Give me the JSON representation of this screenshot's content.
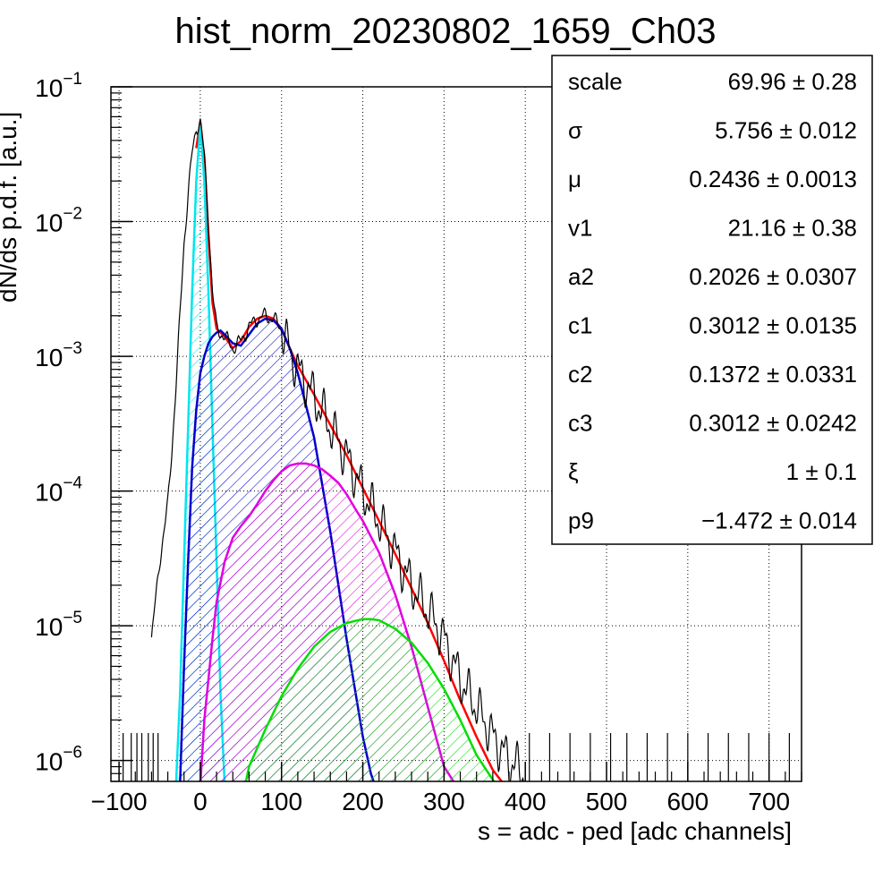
{
  "chart_data": {
    "type": "histogram",
    "title": "hist_norm_20230802_1659_Ch03",
    "xlabel": "s = adc - ped [adc channels]",
    "ylabel": "dN/ds p.d.f. [a.u.]",
    "xlim": [
      -110,
      740
    ],
    "ylim": [
      7e-07,
      0.1
    ],
    "yscale": "log",
    "grid": true,
    "x_ticks": [
      -100,
      0,
      100,
      200,
      300,
      400,
      500,
      600,
      700
    ],
    "x_tick_labels": [
      "−100",
      "0",
      "100",
      "200",
      "300",
      "400",
      "500",
      "600",
      "700"
    ],
    "y_ticks": [
      {
        "value": 1e-06,
        "base": "10",
        "exp": "−6"
      },
      {
        "value": 1e-05,
        "base": "10",
        "exp": "−5"
      },
      {
        "value": 0.0001,
        "base": "10",
        "exp": "−4"
      },
      {
        "value": 0.001,
        "base": "10",
        "exp": "−3"
      },
      {
        "value": 0.01,
        "base": "10",
        "exp": "−2"
      },
      {
        "value": 0.1,
        "base": "10",
        "exp": "−1"
      }
    ],
    "histogram": {
      "color": "#000000",
      "x": [
        -60,
        -50,
        -40,
        -35,
        -30,
        -25,
        -20,
        -15,
        -10,
        -5,
        0,
        5,
        10,
        15,
        20,
        30,
        40,
        50,
        60,
        70,
        80,
        90,
        100,
        110,
        120,
        140,
        160,
        180,
        200,
        220,
        240,
        260,
        280,
        300,
        320,
        340,
        360,
        380,
        400
      ],
      "y": [
        8e-06,
        3e-05,
        8e-05,
        0.0002,
        0.0006,
        0.002,
        0.007,
        0.016,
        0.032,
        0.05,
        0.055,
        0.03,
        0.01,
        0.003,
        0.0016,
        0.0014,
        0.00115,
        0.0013,
        0.00165,
        0.0019,
        0.002,
        0.0019,
        0.0016,
        0.0011,
        0.0008,
        0.0005,
        0.0003,
        0.00018,
        0.0001,
        6e-05,
        3.5e-05,
        2e-05,
        1.3e-05,
        8e-06,
        4e-06,
        2.5e-06,
        1.5e-06,
        1e-06,
        8e-07
      ],
      "sparse_bins_x": [
        -95,
        -85,
        -78,
        -72,
        -64,
        -58,
        -52,
        405,
        430,
        455,
        480,
        505,
        525,
        550,
        575,
        600,
        625,
        650,
        675,
        700,
        725
      ]
    },
    "series": [
      {
        "color": "#ff0000",
        "fill": "none",
        "x": [
          -5,
          0,
          5,
          10,
          15,
          20,
          30,
          40,
          50,
          60,
          70,
          80,
          90,
          100,
          110,
          120,
          140,
          160,
          180,
          200,
          220,
          240,
          260,
          280,
          300,
          320,
          340,
          360,
          375
        ],
        "y": [
          0.035,
          0.055,
          0.03,
          0.008,
          0.0025,
          0.0016,
          0.0014,
          0.00115,
          0.0013,
          0.00165,
          0.0019,
          0.002,
          0.0019,
          0.0016,
          0.00115,
          0.00085,
          0.00052,
          0.00031,
          0.000185,
          0.000105,
          6e-05,
          3.4e-05,
          1.9e-05,
          1.05e-05,
          5.5e-06,
          2.8e-06,
          1.5e-06,
          8.5e-07,
          6.5e-07
        ]
      },
      {
        "color": "#00e5ee",
        "fill": "#00e5ee",
        "x": [
          -30,
          -25,
          -20,
          -15,
          -10,
          -5,
          0,
          5,
          10,
          15,
          20,
          25,
          30
        ],
        "y": [
          6.5e-07,
          3e-06,
          3e-05,
          0.0003,
          0.003,
          0.02,
          0.052,
          0.02,
          0.003,
          0.0003,
          3e-05,
          3e-06,
          6.5e-07
        ]
      },
      {
        "color": "#0000cc",
        "fill": "#0000cc",
        "x": [
          -25,
          -20,
          -15,
          -10,
          -5,
          0,
          5,
          10,
          15,
          20,
          25,
          30,
          40,
          50,
          60,
          70,
          80,
          90,
          100,
          110,
          120,
          140,
          160,
          180,
          200,
          210,
          215
        ],
        "y": [
          6.5e-07,
          5e-06,
          3e-05,
          0.00015,
          0.0004,
          0.00075,
          0.001,
          0.00125,
          0.0014,
          0.0015,
          0.00155,
          0.00145,
          0.00125,
          0.0012,
          0.00145,
          0.00175,
          0.0019,
          0.00185,
          0.0016,
          0.00115,
          0.00075,
          0.00025,
          5e-05,
          8e-06,
          1.5e-06,
          8e-07,
          6.5e-07
        ]
      },
      {
        "color": "#e000e0",
        "fill": "#e000e0",
        "x": [
          0,
          5,
          10,
          15,
          20,
          30,
          40,
          50,
          60,
          70,
          80,
          90,
          100,
          110,
          120,
          130,
          140,
          150,
          160,
          170,
          180,
          190,
          200,
          220,
          240,
          260,
          280,
          300,
          315
        ],
        "y": [
          6.5e-07,
          2e-06,
          4e-06,
          8e-06,
          1.5e-05,
          3e-05,
          4.5e-05,
          5.5e-05,
          6.5e-05,
          8e-05,
          0.0001,
          0.00012,
          0.00014,
          0.000155,
          0.00016,
          0.00016,
          0.000155,
          0.000145,
          0.00013,
          0.000115,
          9.5e-05,
          7.5e-05,
          6e-05,
          3.5e-05,
          1.7e-05,
          7e-06,
          2.5e-06,
          9e-07,
          6.5e-07
        ]
      },
      {
        "color": "#00dd00",
        "fill": "#00dd00",
        "x": [
          55,
          60,
          80,
          100,
          120,
          140,
          160,
          180,
          200,
          210,
          220,
          240,
          260,
          280,
          300,
          320,
          340,
          355,
          365
        ],
        "y": [
          6.5e-07,
          9e-07,
          1.7e-06,
          3e-06,
          4.8e-06,
          7e-06,
          9e-06,
          1.05e-05,
          1.12e-05,
          1.12e-05,
          1.1e-05,
          9.5e-06,
          7.5e-06,
          5.3e-06,
          3.4e-06,
          2e-06,
          1.1e-06,
          8e-07,
          6.5e-07
        ]
      }
    ]
  },
  "stats_box": {
    "rows": [
      {
        "name": "scale",
        "value": "69.96 ± 0.28"
      },
      {
        "name": "σ",
        "value": "5.756 ± 0.012"
      },
      {
        "name": "μ",
        "value": "0.2436 ± 0.0013"
      },
      {
        "name": "v1",
        "value": "21.16 ± 0.38"
      },
      {
        "name": "a2",
        "value": "0.2026 ± 0.0307"
      },
      {
        "name": "c1",
        "value": "0.3012 ± 0.0135"
      },
      {
        "name": "c2",
        "value": "0.1372 ± 0.0331"
      },
      {
        "name": "c3",
        "value": "0.3012 ± 0.0242"
      },
      {
        "name": "ξ",
        "value": "1 ± 0.1"
      },
      {
        "name": "p9",
        "value": "−1.472 ± 0.014"
      }
    ]
  }
}
